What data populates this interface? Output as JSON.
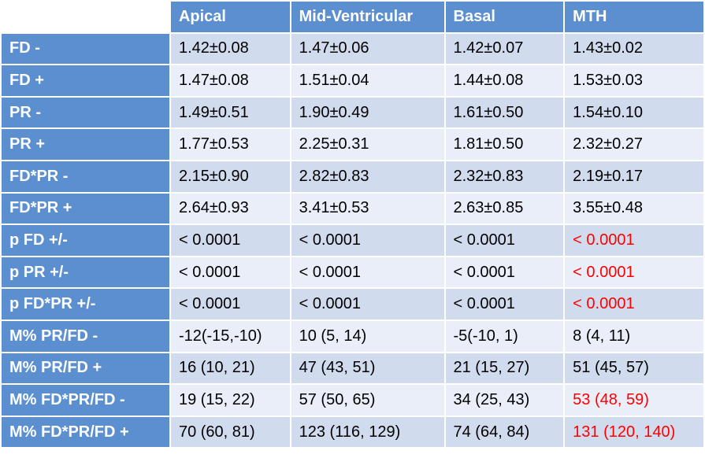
{
  "table": {
    "columns": [
      "Apical",
      "Mid-Ventricular",
      "Basal",
      "MTH"
    ],
    "highlight_color": "#ff0000",
    "rows": [
      {
        "label": "FD -",
        "cells": [
          "1.42±0.08",
          "1.47±0.06",
          "1.42±0.07",
          "1.43±0.02"
        ],
        "highlight": []
      },
      {
        "label": "FD +",
        "cells": [
          "1.47±0.08",
          "1.51±0.04",
          "1.44±0.08",
          "1.53±0.03"
        ],
        "highlight": []
      },
      {
        "label": "PR -",
        "cells": [
          "1.49±0.51",
          "1.90±0.49",
          "1.61±0.50",
          "1.54±0.10"
        ],
        "highlight": []
      },
      {
        "label": "PR +",
        "cells": [
          "1.77±0.53",
          "2.25±0.31",
          "1.81±0.50",
          "2.32±0.27"
        ],
        "highlight": []
      },
      {
        "label": "FD*PR -",
        "cells": [
          "2.15±0.90",
          "2.82±0.83",
          "2.32±0.83",
          "2.19±0.17"
        ],
        "highlight": []
      },
      {
        "label": "FD*PR +",
        "cells": [
          "2.64±0.93",
          "3.41±0.53",
          "2.63±0.85",
          "3.55±0.48"
        ],
        "highlight": []
      },
      {
        "label": "p FD +/-",
        "cells": [
          "< 0.0001",
          "< 0.0001",
          "< 0.0001",
          "< 0.0001"
        ],
        "highlight": [
          3
        ]
      },
      {
        "label": "p PR +/-",
        "cells": [
          "< 0.0001",
          "< 0.0001",
          "< 0.0001",
          "< 0.0001"
        ],
        "highlight": [
          3
        ]
      },
      {
        "label": "p FD*PR +/-",
        "cells": [
          "< 0.0001",
          "< 0.0001",
          "< 0.0001",
          "< 0.0001"
        ],
        "highlight": [
          3
        ]
      },
      {
        "label": "M% PR/FD -",
        "cells": [
          "-12(-15,-10)",
          "10 (5, 14)",
          "-5(-10, 1)",
          "8 (4, 11)"
        ],
        "highlight": []
      },
      {
        "label": "M% PR/FD +",
        "cells": [
          "16 (10, 21)",
          "47 (43, 51)",
          "21 (15, 27)",
          "51 (45, 57)"
        ],
        "highlight": []
      },
      {
        "label": "M% FD*PR/FD -",
        "cells": [
          "19 (15, 22)",
          "57 (50, 65)",
          "34 (25, 43)",
          "53 (48, 59)"
        ],
        "highlight": [
          3
        ]
      },
      {
        "label": "M% FD*PR/FD +",
        "cells": [
          "70 (60, 81)",
          "123 (116, 129)",
          "74 (64, 84)",
          "131 (120, 140)"
        ],
        "highlight": [
          3
        ]
      }
    ]
  }
}
